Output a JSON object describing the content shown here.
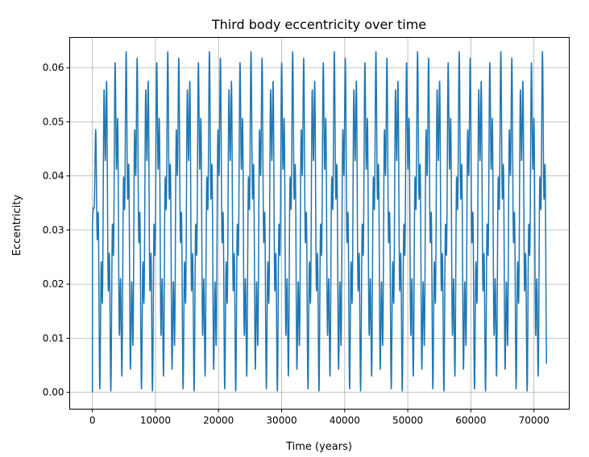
{
  "chart_data": {
    "type": "line",
    "title": "Third body eccentricity over time",
    "xlabel": "Time (years)",
    "ylabel": "Eccentricity",
    "xlim": [
      -3600,
      75600
    ],
    "ylim": [
      -0.0031,
      0.0656
    ],
    "x_ticks": [
      0,
      10000,
      20000,
      30000,
      40000,
      50000,
      60000,
      70000
    ],
    "y_ticks": [
      0.0,
      0.01,
      0.02,
      0.03,
      0.04,
      0.05,
      0.06
    ],
    "x_tick_labels": [
      "0",
      "10000",
      "20000",
      "30000",
      "40000",
      "50000",
      "60000",
      "70000"
    ],
    "y_tick_labels": [
      "0.00",
      "0.01",
      "0.02",
      "0.03",
      "0.04",
      "0.05",
      "0.06"
    ],
    "grid": true,
    "series": [
      {
        "color": "#1f77b4",
        "x_start": 0,
        "x_end": 72000,
        "mean": 0.0315,
        "long_period": 1650,
        "envelope_min": 0.0,
        "envelope_max": 0.063,
        "short_period": 440
      }
    ]
  }
}
